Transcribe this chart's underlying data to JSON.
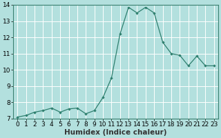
{
  "x": [
    0,
    1,
    2,
    3,
    4,
    5,
    6,
    7,
    8,
    9,
    10,
    11,
    12,
    13,
    14,
    15,
    16,
    17,
    18,
    19,
    20,
    21,
    22,
    23
  ],
  "y": [
    7.1,
    7.2,
    7.4,
    7.5,
    7.65,
    7.4,
    7.6,
    7.65,
    7.3,
    7.5,
    8.3,
    9.5,
    12.2,
    13.85,
    13.5,
    13.85,
    13.5,
    11.7,
    11.0,
    10.9,
    10.25,
    10.85,
    10.25,
    10.25
  ],
  "line_color": "#2e7f6e",
  "marker_color": "#2e7f6e",
  "bg_color": "#b3e0de",
  "grid_color": "#ffffff",
  "xlabel": "Humidex (Indice chaleur)",
  "ylim": [
    7,
    14
  ],
  "xlim": [
    -0.5,
    23.5
  ],
  "yticks": [
    7,
    8,
    9,
    10,
    11,
    12,
    13,
    14
  ],
  "xticks": [
    0,
    1,
    2,
    3,
    4,
    5,
    6,
    7,
    8,
    9,
    10,
    11,
    12,
    13,
    14,
    15,
    16,
    17,
    18,
    19,
    20,
    21,
    22,
    23
  ],
  "xlabel_fontsize": 7.5,
  "tick_fontsize": 6.5
}
